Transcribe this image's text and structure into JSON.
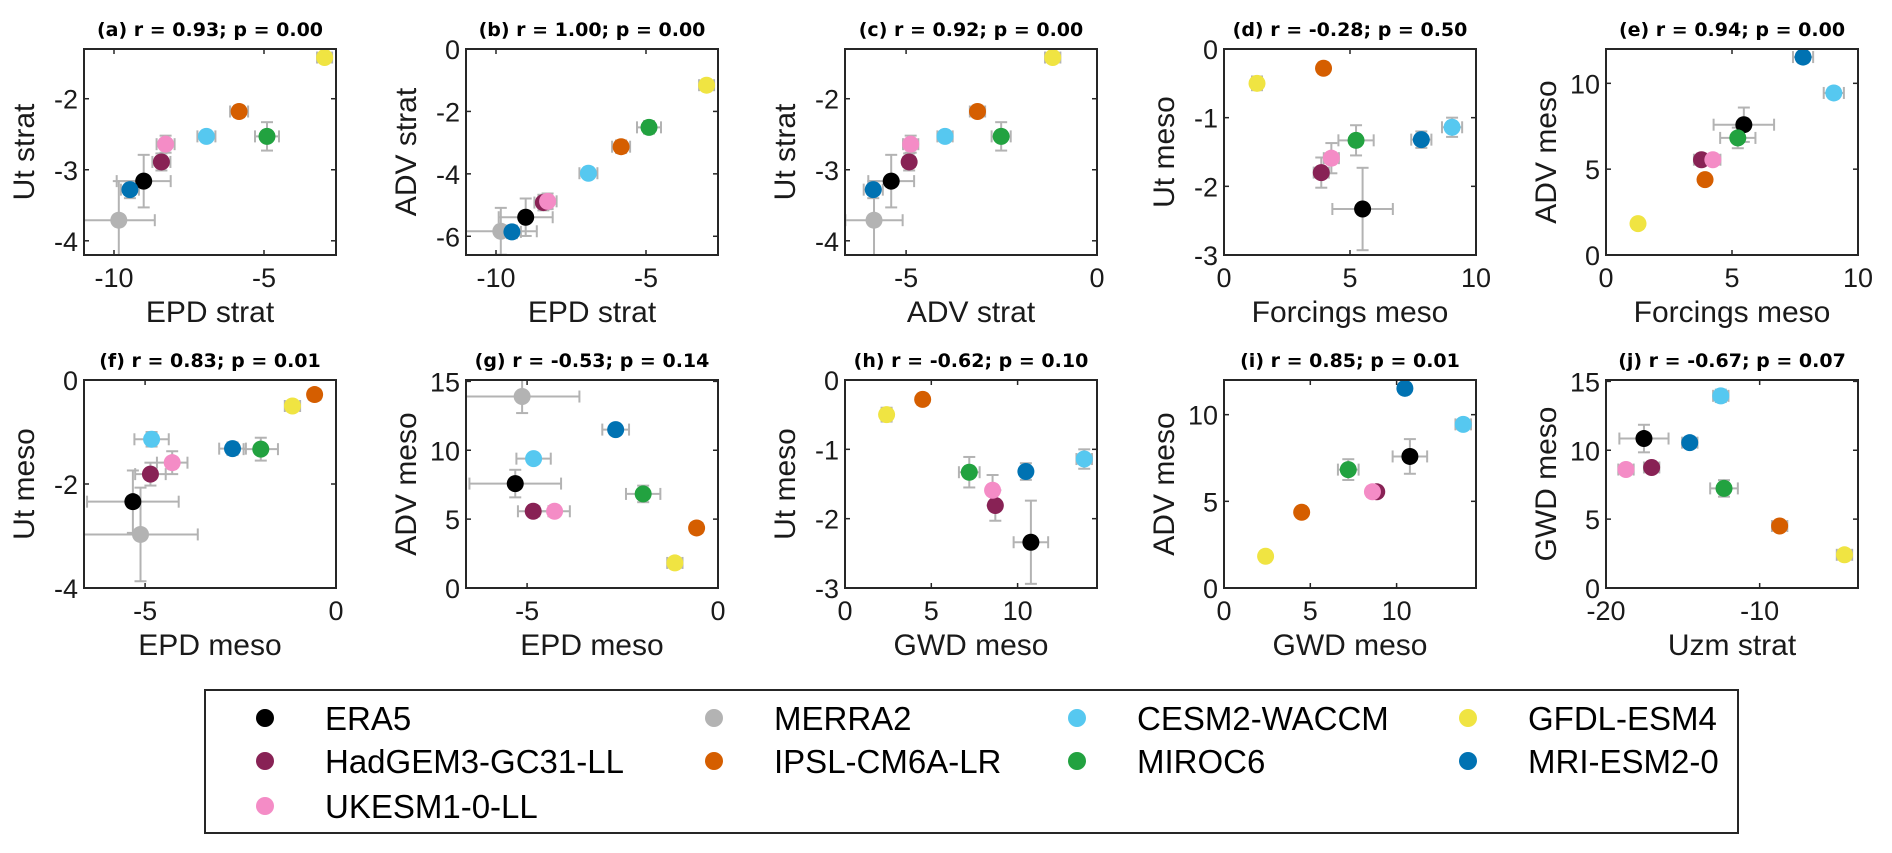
{
  "models": [
    {
      "key": "ERA5",
      "label": "ERA5",
      "color": "#000000"
    },
    {
      "key": "MERRA2",
      "label": "MERRA2",
      "color": "#b3b3b3"
    },
    {
      "key": "CESM2-WACCM",
      "label": "CESM2-WACCM",
      "color": "#56c8f0"
    },
    {
      "key": "GFDL-ESM4",
      "label": "GFDL-ESM4",
      "color": "#f0e442"
    },
    {
      "key": "HadGEM3-GC31-LL",
      "label": "HadGEM3-GC31-LL",
      "color": "#882255"
    },
    {
      "key": "IPSL-CM6A-LR",
      "label": "IPSL-CM6A-LR",
      "color": "#d55e00"
    },
    {
      "key": "MIROC6",
      "label": "MIROC6",
      "color": "#22a240"
    },
    {
      "key": "MRI-ESM2-0",
      "label": "MRI-ESM2-0",
      "color": "#0072b2"
    },
    {
      "key": "UKESM1-0-LL",
      "label": "UKESM1-0-LL",
      "color": "#f48cc6"
    }
  ],
  "legend": {
    "placement": "bottom-center",
    "columns": [
      [
        "ERA5",
        "HadGEM3-GC31-LL",
        "UKESM1-0-LL"
      ],
      [
        "MERRA2",
        "IPSL-CM6A-LR"
      ],
      [
        "CESM2-WACCM",
        "MIROC6"
      ],
      [
        "GFDL-ESM4",
        "MRI-ESM2-0"
      ]
    ]
  },
  "error_bar_color": "#b3b3b3",
  "chart_data": [
    {
      "type": "scatter",
      "id": "a",
      "title": "(a) r = 0.93; p = 0.00",
      "xlabel": "EPD strat",
      "ylabel": "Ut strat",
      "xlim": [
        -11,
        -2.6
      ],
      "ylim": [
        -4.2,
        -1.3
      ],
      "xticks": [
        -10,
        -5
      ],
      "yticks": [
        -4,
        -3,
        -2
      ],
      "points": [
        {
          "model": "ERA5",
          "x": -9.01,
          "xerr": 0.9,
          "y": -3.16,
          "yerr": 0.37
        },
        {
          "model": "MERRA2",
          "x": -9.84,
          "xerr": 1.2,
          "y": -3.71,
          "yerr": 0.55
        },
        {
          "model": "HadGEM3-GC31-LL",
          "x": -8.42,
          "xerr": 0.3,
          "y": -2.89,
          "yerr": 0.12
        },
        {
          "model": "UKESM1-0-LL",
          "x": -8.28,
          "xerr": 0.3,
          "y": -2.64,
          "yerr": 0.12
        },
        {
          "model": "IPSL-CM6A-LR",
          "x": -5.83,
          "xerr": 0.3,
          "y": -2.18,
          "yerr": 0.08
        },
        {
          "model": "CESM2-WACCM",
          "x": -6.92,
          "xerr": 0.3,
          "y": -2.53,
          "yerr": 0.06
        },
        {
          "model": "MIROC6",
          "x": -4.9,
          "xerr": 0.4,
          "y": -2.53,
          "yerr": 0.2
        },
        {
          "model": "GFDL-ESM4",
          "x": -2.98,
          "xerr": 0.25,
          "y": -1.42,
          "yerr": 0.05
        },
        {
          "model": "MRI-ESM2-0",
          "x": -9.47,
          "xerr": 0.3,
          "y": -3.28,
          "yerr": 0.12
        }
      ]
    },
    {
      "type": "scatter",
      "id": "b",
      "title": "(b) r = 1.00; p = 0.00",
      "xlabel": "EPD strat",
      "ylabel": "ADV strat",
      "xlim": [
        -11,
        -2.6
      ],
      "ylim": [
        -6.6,
        0
      ],
      "xticks": [
        -10,
        -5
      ],
      "yticks": [
        -6,
        -4,
        -2,
        0
      ],
      "points": [
        {
          "model": "ERA5",
          "x": -9.01,
          "xerr": 0.9,
          "y": -5.39,
          "yerr": 0.6
        },
        {
          "model": "MERRA2",
          "x": -9.84,
          "xerr": 1.2,
          "y": -5.84,
          "yerr": 0.75
        },
        {
          "model": "HadGEM3-GC31-LL",
          "x": -8.42,
          "xerr": 0.3,
          "y": -4.92,
          "yerr": 0.25
        },
        {
          "model": "UKESM1-0-LL",
          "x": -8.28,
          "xerr": 0.3,
          "y": -4.88,
          "yerr": 0.25
        },
        {
          "model": "IPSL-CM6A-LR",
          "x": -5.83,
          "xerr": 0.3,
          "y": -3.13,
          "yerr": 0.2
        },
        {
          "model": "CESM2-WACCM",
          "x": -6.92,
          "xerr": 0.3,
          "y": -3.98,
          "yerr": 0.15
        },
        {
          "model": "MIROC6",
          "x": -4.9,
          "xerr": 0.4,
          "y": -2.51,
          "yerr": 0.2
        },
        {
          "model": "GFDL-ESM4",
          "x": -2.98,
          "xerr": 0.25,
          "y": -1.16,
          "yerr": 0.15
        },
        {
          "model": "MRI-ESM2-0",
          "x": -9.47,
          "xerr": 0.3,
          "y": -5.86,
          "yerr": 0.2
        }
      ]
    },
    {
      "type": "scatter",
      "id": "c",
      "title": "(c) r = 0.92; p = 0.00",
      "xlabel": "ADV strat",
      "ylabel": "Ut strat",
      "xlim": [
        -6.6,
        0
      ],
      "ylim": [
        -4.2,
        -1.3
      ],
      "xticks": [
        -5,
        0
      ],
      "yticks": [
        -4,
        -3,
        -2
      ],
      "points": [
        {
          "model": "ERA5",
          "x": -5.39,
          "xerr": 0.6,
          "y": -3.16,
          "yerr": 0.37
        },
        {
          "model": "MERRA2",
          "x": -5.84,
          "xerr": 0.75,
          "y": -3.71,
          "yerr": 0.55
        },
        {
          "model": "HadGEM3-GC31-LL",
          "x": -4.92,
          "xerr": 0.15,
          "y": -2.89,
          "yerr": 0.12
        },
        {
          "model": "UKESM1-0-LL",
          "x": -4.88,
          "xerr": 0.2,
          "y": -2.64,
          "yerr": 0.12
        },
        {
          "model": "IPSL-CM6A-LR",
          "x": -3.13,
          "xerr": 0.2,
          "y": -2.18,
          "yerr": 0.08
        },
        {
          "model": "CESM2-WACCM",
          "x": -3.98,
          "xerr": 0.2,
          "y": -2.53,
          "yerr": 0.06
        },
        {
          "model": "MIROC6",
          "x": -2.51,
          "xerr": 0.25,
          "y": -2.53,
          "yerr": 0.2
        },
        {
          "model": "GFDL-ESM4",
          "x": -1.16,
          "xerr": 0.2,
          "y": -1.42,
          "yerr": 0.05
        },
        {
          "model": "MRI-ESM2-0",
          "x": -5.86,
          "xerr": 0.25,
          "y": -3.28,
          "yerr": 0.12
        }
      ]
    },
    {
      "type": "scatter",
      "id": "d",
      "title": "(d) r = -0.28; p = 0.50",
      "xlabel": "Forcings meso",
      "ylabel": "Ut meso",
      "xlim": [
        0,
        10
      ],
      "ylim": [
        -3,
        0
      ],
      "xticks": [
        0,
        5,
        10
      ],
      "yticks": [
        -3,
        -2,
        -1,
        0
      ],
      "points": [
        {
          "model": "ERA5",
          "x": 5.5,
          "xerr": 1.2,
          "y": -2.33,
          "yerr": 0.6
        },
        {
          "model": "HadGEM3-GC31-LL",
          "x": 3.86,
          "xerr": 0.3,
          "y": -1.8,
          "yerr": 0.22
        },
        {
          "model": "UKESM1-0-LL",
          "x": 4.26,
          "xerr": 0.3,
          "y": -1.59,
          "yerr": 0.22
        },
        {
          "model": "IPSL-CM6A-LR",
          "x": 3.95,
          "xerr": 0.2,
          "y": -0.28,
          "yerr": 0.08
        },
        {
          "model": "CESM2-WACCM",
          "x": 9.05,
          "xerr": 0.4,
          "y": -1.14,
          "yerr": 0.14
        },
        {
          "model": "MIROC6",
          "x": 5.24,
          "xerr": 0.7,
          "y": -1.33,
          "yerr": 0.22
        },
        {
          "model": "GFDL-ESM4",
          "x": 1.31,
          "xerr": 0.2,
          "y": -0.5,
          "yerr": 0.1
        },
        {
          "model": "MRI-ESM2-0",
          "x": 7.83,
          "xerr": 0.4,
          "y": -1.32,
          "yerr": 0.12
        }
      ]
    },
    {
      "type": "scatter",
      "id": "e",
      "title": "(e) r = 0.94; p = 0.00",
      "xlabel": "Forcings meso",
      "ylabel": "ADV meso",
      "xlim": [
        0,
        10
      ],
      "ylim": [
        0,
        12
      ],
      "xticks": [
        0,
        5,
        10
      ],
      "yticks": [
        0,
        5,
        10
      ],
      "points": [
        {
          "model": "ERA5",
          "x": 5.47,
          "xerr": 1.2,
          "y": 7.59,
          "yerr": 1.0
        },
        {
          "model": "HadGEM3-GC31-LL",
          "x": 3.79,
          "xerr": 0.3,
          "y": 5.55,
          "yerr": 0.3
        },
        {
          "model": "UKESM1-0-LL",
          "x": 4.24,
          "xerr": 0.3,
          "y": 5.55,
          "yerr": 0.3
        },
        {
          "model": "IPSL-CM6A-LR",
          "x": 3.93,
          "xerr": 0.2,
          "y": 4.39,
          "yerr": 0.3
        },
        {
          "model": "CESM2-WACCM",
          "x": 9.04,
          "xerr": 0.4,
          "y": 9.44,
          "yerr": 0.3
        },
        {
          "model": "MIROC6",
          "x": 5.23,
          "xerr": 0.7,
          "y": 6.82,
          "yerr": 0.6
        },
        {
          "model": "GFDL-ESM4",
          "x": 1.27,
          "xerr": 0.2,
          "y": 1.83,
          "yerr": 0.3
        },
        {
          "model": "MRI-ESM2-0",
          "x": 7.82,
          "xerr": 0.4,
          "y": 11.53,
          "yerr": 0.3
        }
      ]
    },
    {
      "type": "scatter",
      "id": "f",
      "title": "(f) r = 0.83; p = 0.01",
      "xlabel": "EPD meso",
      "ylabel": "Ut meso",
      "xlim": [
        -6.6,
        0
      ],
      "ylim": [
        -4,
        0
      ],
      "xticks": [
        -5,
        0
      ],
      "yticks": [
        -4,
        -2,
        0
      ],
      "points": [
        {
          "model": "ERA5",
          "x": -5.32,
          "xerr": 1.2,
          "y": -2.34,
          "yerr": 0.6
        },
        {
          "model": "MERRA2",
          "x": -5.12,
          "xerr": 1.5,
          "y": -2.97,
          "yerr": 0.9
        },
        {
          "model": "HadGEM3-GC31-LL",
          "x": -4.86,
          "xerr": 0.4,
          "y": -1.81,
          "yerr": 0.22
        },
        {
          "model": "UKESM1-0-LL",
          "x": -4.29,
          "xerr": 0.4,
          "y": -1.59,
          "yerr": 0.22
        },
        {
          "model": "IPSL-CM6A-LR",
          "x": -0.56,
          "xerr": 0.15,
          "y": -0.28,
          "yerr": 0.08
        },
        {
          "model": "CESM2-WACCM",
          "x": -4.83,
          "xerr": 0.45,
          "y": -1.14,
          "yerr": 0.14
        },
        {
          "model": "MIROC6",
          "x": -1.97,
          "xerr": 0.45,
          "y": -1.33,
          "yerr": 0.22
        },
        {
          "model": "GFDL-ESM4",
          "x": -1.14,
          "xerr": 0.2,
          "y": -0.5,
          "yerr": 0.1
        },
        {
          "model": "MRI-ESM2-0",
          "x": -2.71,
          "xerr": 0.35,
          "y": -1.32,
          "yerr": 0.12
        }
      ]
    },
    {
      "type": "scatter",
      "id": "g",
      "title": "(g) r = -0.53; p = 0.14",
      "xlabel": "EPD meso",
      "ylabel": "ADV meso",
      "xlim": [
        -6.6,
        0
      ],
      "ylim": [
        0,
        15.1
      ],
      "xticks": [
        -5,
        0
      ],
      "yticks": [
        0,
        5,
        10,
        15
      ],
      "points": [
        {
          "model": "ERA5",
          "x": -5.31,
          "xerr": 1.2,
          "y": 7.58,
          "yerr": 1.0
        },
        {
          "model": "MERRA2",
          "x": -5.13,
          "xerr": 1.5,
          "y": 13.9,
          "yerr": 1.2
        },
        {
          "model": "HadGEM3-GC31-LL",
          "x": -4.84,
          "xerr": 0.4,
          "y": 5.57,
          "yerr": 0.3
        },
        {
          "model": "UKESM1-0-LL",
          "x": -4.28,
          "xerr": 0.4,
          "y": 5.57,
          "yerr": 0.3
        },
        {
          "model": "IPSL-CM6A-LR",
          "x": -0.56,
          "xerr": 0.15,
          "y": 4.36,
          "yerr": 0.3
        },
        {
          "model": "CESM2-WACCM",
          "x": -4.83,
          "xerr": 0.45,
          "y": 9.39,
          "yerr": 0.3
        },
        {
          "model": "MIROC6",
          "x": -1.96,
          "xerr": 0.45,
          "y": 6.83,
          "yerr": 0.6
        },
        {
          "model": "GFDL-ESM4",
          "x": -1.13,
          "xerr": 0.2,
          "y": 1.82,
          "yerr": 0.3
        },
        {
          "model": "MRI-ESM2-0",
          "x": -2.68,
          "xerr": 0.35,
          "y": 11.5,
          "yerr": 0.3
        }
      ]
    },
    {
      "type": "scatter",
      "id": "h",
      "title": "(h) r = -0.62; p = 0.10",
      "xlabel": "GWD meso",
      "ylabel": "Ut meso",
      "xlim": [
        0,
        14.6
      ],
      "ylim": [
        -3,
        0
      ],
      "xticks": [
        0,
        5,
        10
      ],
      "yticks": [
        -3,
        -2,
        -1,
        0
      ],
      "points": [
        {
          "model": "ERA5",
          "x": 10.77,
          "xerr": 1.0,
          "y": -2.34,
          "yerr": 0.6
        },
        {
          "model": "HadGEM3-GC31-LL",
          "x": 8.71,
          "xerr": 0.3,
          "y": -1.81,
          "yerr": 0.22
        },
        {
          "model": "UKESM1-0-LL",
          "x": 8.55,
          "xerr": 0.3,
          "y": -1.59,
          "yerr": 0.22
        },
        {
          "model": "IPSL-CM6A-LR",
          "x": 4.5,
          "xerr": 0.25,
          "y": -0.28,
          "yerr": 0.08
        },
        {
          "model": "CESM2-WACCM",
          "x": 13.86,
          "xerr": 0.45,
          "y": -1.14,
          "yerr": 0.14
        },
        {
          "model": "MIROC6",
          "x": 7.2,
          "xerr": 0.6,
          "y": -1.33,
          "yerr": 0.22
        },
        {
          "model": "GFDL-ESM4",
          "x": 2.41,
          "xerr": 0.3,
          "y": -0.5,
          "yerr": 0.1
        },
        {
          "model": "MRI-ESM2-0",
          "x": 10.48,
          "xerr": 0.3,
          "y": -1.32,
          "yerr": 0.12
        }
      ]
    },
    {
      "type": "scatter",
      "id": "i",
      "title": "(i) r = 0.85; p = 0.01",
      "xlabel": "GWD meso",
      "ylabel": "ADV meso",
      "xlim": [
        0,
        14.6
      ],
      "ylim": [
        0,
        12
      ],
      "xticks": [
        0,
        5,
        10
      ],
      "yticks": [
        0,
        5,
        10
      ],
      "points": [
        {
          "model": "ERA5",
          "x": 10.77,
          "xerr": 1.0,
          "y": 7.59,
          "yerr": 1.0
        },
        {
          "model": "HadGEM3-GC31-LL",
          "x": 8.85,
          "xerr": 0.3,
          "y": 5.55,
          "yerr": 0.3
        },
        {
          "model": "UKESM1-0-LL",
          "x": 8.6,
          "xerr": 0.3,
          "y": 5.55,
          "yerr": 0.3
        },
        {
          "model": "IPSL-CM6A-LR",
          "x": 4.5,
          "xerr": 0.25,
          "y": 4.37,
          "yerr": 0.3
        },
        {
          "model": "CESM2-WACCM",
          "x": 13.86,
          "xerr": 0.45,
          "y": 9.44,
          "yerr": 0.3
        },
        {
          "model": "MIROC6",
          "x": 7.2,
          "xerr": 0.6,
          "y": 6.83,
          "yerr": 0.6
        },
        {
          "model": "GFDL-ESM4",
          "x": 2.41,
          "xerr": 0.3,
          "y": 1.83,
          "yerr": 0.3
        },
        {
          "model": "MRI-ESM2-0",
          "x": 10.48,
          "xerr": 0.3,
          "y": 11.52,
          "yerr": 0.3
        }
      ]
    },
    {
      "type": "scatter",
      "id": "j",
      "title": "(j) r = -0.67; p = 0.07",
      "xlabel": "Uzm strat",
      "ylabel": "GWD meso",
      "xlim": [
        -20,
        -3.6
      ],
      "ylim": [
        0,
        15.1
      ],
      "xticks": [
        -20,
        -10
      ],
      "yticks": [
        0,
        5,
        10,
        15
      ],
      "points": [
        {
          "model": "ERA5",
          "x": -17.53,
          "xerr": 1.6,
          "y": 10.85,
          "yerr": 1.0
        },
        {
          "model": "HadGEM3-GC31-LL",
          "x": -17.03,
          "xerr": 0.5,
          "y": 8.75,
          "yerr": 0.3
        },
        {
          "model": "UKESM1-0-LL",
          "x": -18.7,
          "xerr": 0.5,
          "y": 8.6,
          "yerr": 0.3
        },
        {
          "model": "IPSL-CM6A-LR",
          "x": -8.7,
          "xerr": 0.5,
          "y": 4.5,
          "yerr": 0.25
        },
        {
          "model": "CESM2-WACCM",
          "x": -12.53,
          "xerr": 0.5,
          "y": 13.95,
          "yerr": 0.45
        },
        {
          "model": "MIROC6",
          "x": -12.32,
          "xerr": 0.9,
          "y": 7.23,
          "yerr": 0.6
        },
        {
          "model": "GFDL-ESM4",
          "x": -4.48,
          "xerr": 0.5,
          "y": 2.41,
          "yerr": 0.3
        },
        {
          "model": "MRI-ESM2-0",
          "x": -14.55,
          "xerr": 0.5,
          "y": 10.55,
          "yerr": 0.3
        }
      ]
    }
  ]
}
